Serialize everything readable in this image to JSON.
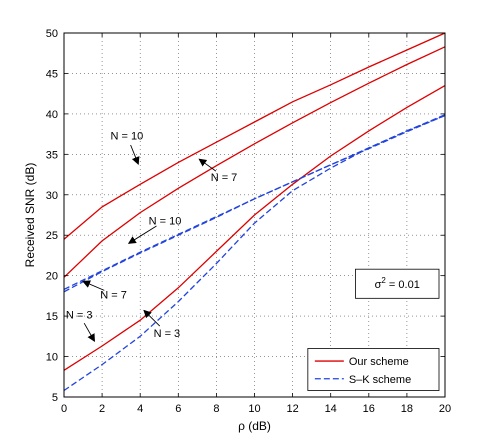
{
  "chart_data": {
    "type": "line",
    "xlabel": "ρ (dB)",
    "ylabel": "Received SNR (dB)",
    "xlim": [
      0,
      20
    ],
    "ylim": [
      5,
      50
    ],
    "xticks": [
      0,
      2,
      4,
      6,
      8,
      10,
      12,
      14,
      16,
      18,
      20
    ],
    "yticks": [
      5,
      10,
      15,
      20,
      25,
      30,
      35,
      40,
      45,
      50
    ],
    "grid": true,
    "legend_position": "bottom-right",
    "legend": [
      {
        "label": "Our scheme",
        "color": "#dd0000",
        "style": "solid"
      },
      {
        "label": "S–K scheme",
        "color": "#2244dd",
        "style": "dashed"
      }
    ],
    "series": [
      {
        "scheme": "Our scheme",
        "N": 10,
        "color": "#dd0000",
        "style": "solid",
        "x": [
          0,
          2,
          4,
          6,
          8,
          10,
          12,
          14,
          16,
          18,
          20
        ],
        "y": [
          24.5,
          28.5,
          31.3,
          34.0,
          36.5,
          39.0,
          41.5,
          43.6,
          45.8,
          47.9,
          50.0
        ]
      },
      {
        "scheme": "Our scheme",
        "N": 7,
        "color": "#dd0000",
        "style": "solid",
        "x": [
          0,
          2,
          4,
          6,
          8,
          10,
          12,
          14,
          16,
          18,
          20
        ],
        "y": [
          19.8,
          24.3,
          27.8,
          30.8,
          33.6,
          36.3,
          38.9,
          41.4,
          43.8,
          46.1,
          48.3
        ]
      },
      {
        "scheme": "Our scheme",
        "N": 3,
        "color": "#dd0000",
        "style": "solid",
        "x": [
          0,
          2,
          4,
          6,
          8,
          10,
          12,
          14,
          16,
          18,
          20
        ],
        "y": [
          8.3,
          11.3,
          14.5,
          18.5,
          23.0,
          27.5,
          31.3,
          34.8,
          37.9,
          40.8,
          43.5
        ]
      },
      {
        "scheme": "S–K scheme",
        "N": 10,
        "color": "#2244dd",
        "style": "dashed",
        "x": [
          0,
          2,
          4,
          6,
          8,
          10,
          12,
          14,
          16,
          18,
          20
        ],
        "y": [
          18.0,
          20.5,
          22.8,
          25.0,
          27.2,
          29.5,
          31.6,
          33.7,
          35.8,
          37.9,
          39.9
        ]
      },
      {
        "scheme": "S–K scheme",
        "N": 7,
        "color": "#2244dd",
        "style": "dashed",
        "x": [
          0,
          2,
          4,
          6,
          8,
          10,
          12,
          14,
          16,
          18,
          20
        ],
        "y": [
          18.3,
          20.6,
          22.9,
          25.1,
          27.3,
          29.5,
          31.6,
          33.7,
          35.7,
          37.8,
          39.8
        ]
      },
      {
        "scheme": "S–K scheme",
        "N": 3,
        "color": "#2244dd",
        "style": "dashed",
        "x": [
          0,
          2,
          4,
          6,
          8,
          10,
          12,
          14,
          16,
          18,
          20
        ],
        "y": [
          5.8,
          9.0,
          12.5,
          16.8,
          21.5,
          26.5,
          30.5,
          33.3,
          35.8,
          37.9,
          39.8
        ]
      }
    ],
    "annotations": [
      {
        "text": "N = 10",
        "label_xy": [
          3.3,
          37.3
        ],
        "arrow_to": [
          3.9,
          33.8
        ]
      },
      {
        "text": "N = 7",
        "label_xy": [
          8.4,
          32.2
        ],
        "arrow_to": [
          7.1,
          34.4
        ]
      },
      {
        "text": "N = 10",
        "label_xy": [
          5.3,
          26.8
        ],
        "arrow_to": [
          3.4,
          24.0
        ]
      },
      {
        "text": "N = 7",
        "label_xy": [
          2.6,
          17.7
        ],
        "arrow_to": [
          1.0,
          19.3
        ]
      },
      {
        "text": "N = 3",
        "label_xy": [
          0.8,
          15.2
        ],
        "arrow_to": [
          1.6,
          11.9
        ]
      },
      {
        "text": "N = 3",
        "label_xy": [
          5.4,
          12.9
        ],
        "arrow_to": [
          4.2,
          15.7
        ]
      }
    ],
    "note": {
      "text": "σ² = 0.01",
      "base": "σ",
      "sup": "2",
      "rest": " = 0.01"
    }
  }
}
